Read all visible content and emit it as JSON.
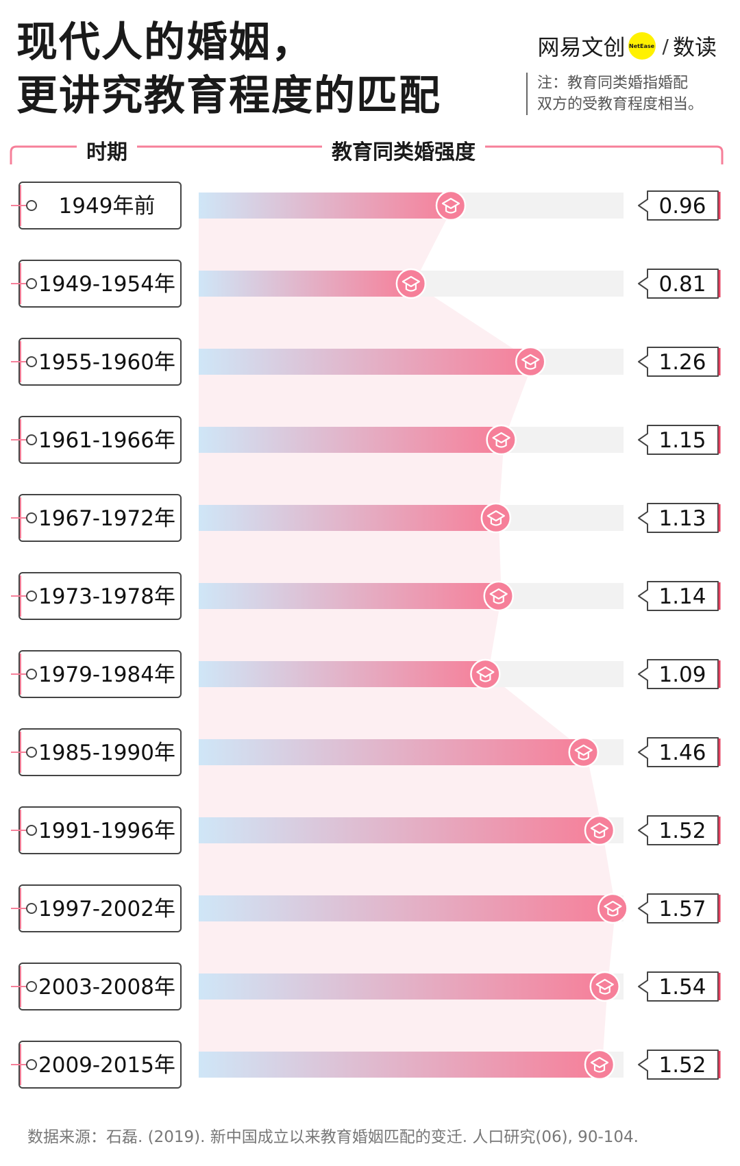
{
  "title": [
    "现代人的婚姻，",
    "更讲究教育程度的匹配"
  ],
  "brand": {
    "name": "网易文创",
    "badge": "NetEase",
    "section": "数读"
  },
  "note": [
    "注：教育同类婚指婚配",
    "双方的受教育程度相当。"
  ],
  "headers": {
    "period": "时期",
    "metric": "教育同类婚强度"
  },
  "colors": {
    "accent": "#f67f99",
    "gradient_start": "#cfe6f7",
    "track": "#f2f2f2",
    "band": "#fdebef"
  },
  "icon": "graduation-cap-icon",
  "chart_data": {
    "type": "bar",
    "orientation": "horizontal",
    "categories": [
      "1949年前",
      "1949-1954年",
      "1955-1960年",
      "1961-1966年",
      "1967-1972年",
      "1973-1978年",
      "1979-1984年",
      "1985-1990年",
      "1991-1996年",
      "1997-2002年",
      "2003-2008年",
      "2009-2015年"
    ],
    "values": [
      0.96,
      0.81,
      1.26,
      1.15,
      1.13,
      1.14,
      1.09,
      1.46,
      1.52,
      1.57,
      1.54,
      1.52
    ],
    "labels": [
      "0.96",
      "0.81",
      "1.26",
      "1.15",
      "1.13",
      "1.14",
      "1.09",
      "1.46",
      "1.52",
      "1.57",
      "1.54",
      "1.52"
    ],
    "xlim": [
      0,
      1.6
    ]
  },
  "source": "数据来源：石磊. (2019). 新中国成立以来教育婚姻匹配的变迁. 人口研究(06), 90-104."
}
